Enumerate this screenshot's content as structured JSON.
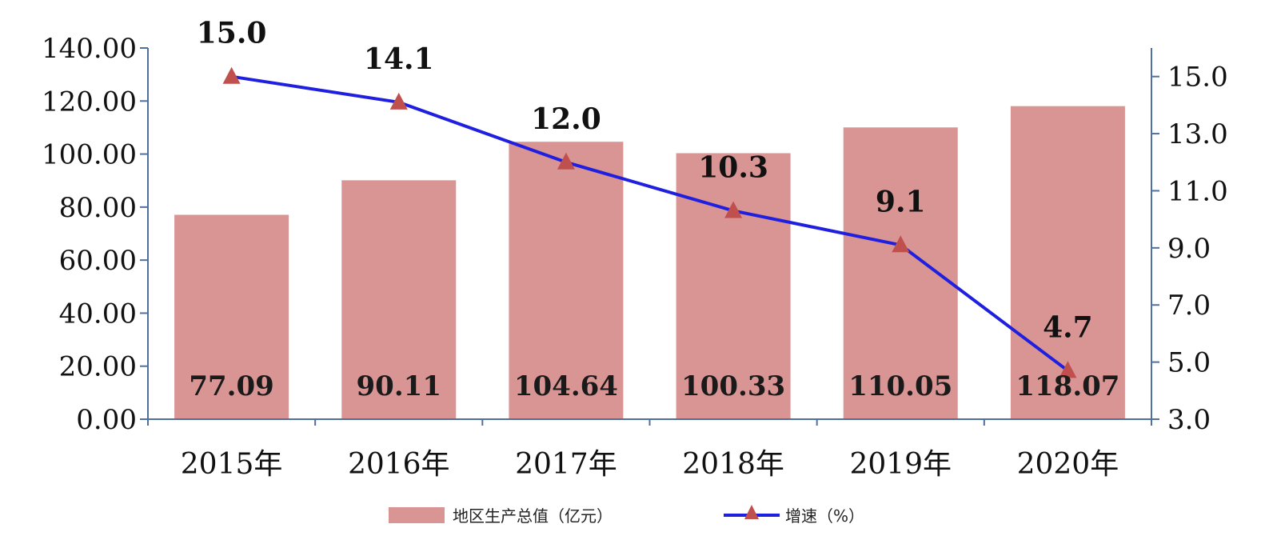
{
  "chart_data": {
    "type": "bar",
    "categories": [
      "2015年",
      "2016年",
      "2017年",
      "2018年",
      "2019年",
      "2020年"
    ],
    "series": [
      {
        "name": "地区生产总值（亿元）",
        "type": "bar",
        "axis": "left",
        "values": [
          77.09,
          90.11,
          104.64,
          100.33,
          110.05,
          118.07
        ],
        "labels": [
          "77.09",
          "90.11",
          "104.64",
          "100.33",
          "110.05",
          "118.07"
        ],
        "color": "#d99594"
      },
      {
        "name": "增速（%）",
        "type": "line",
        "axis": "right",
        "values": [
          15.0,
          14.1,
          12.0,
          10.3,
          9.1,
          4.7
        ],
        "labels": [
          "15.0",
          "14.1",
          "12.0",
          "10.3",
          "9.1",
          "4.7"
        ],
        "color": "#1f1fe0",
        "marker_color": "#c0504d",
        "marker": "triangle"
      }
    ],
    "y_left": {
      "ticks": [
        "0.00",
        "20.00",
        "40.00",
        "60.00",
        "80.00",
        "100.00",
        "120.00",
        "140.00"
      ],
      "range": [
        0,
        140
      ]
    },
    "y_right": {
      "ticks": [
        "3.0",
        "5.0",
        "7.0",
        "9.0",
        "11.0",
        "13.0",
        "15.0"
      ],
      "range": [
        3,
        16
      ]
    },
    "legend_position": "bottom"
  }
}
